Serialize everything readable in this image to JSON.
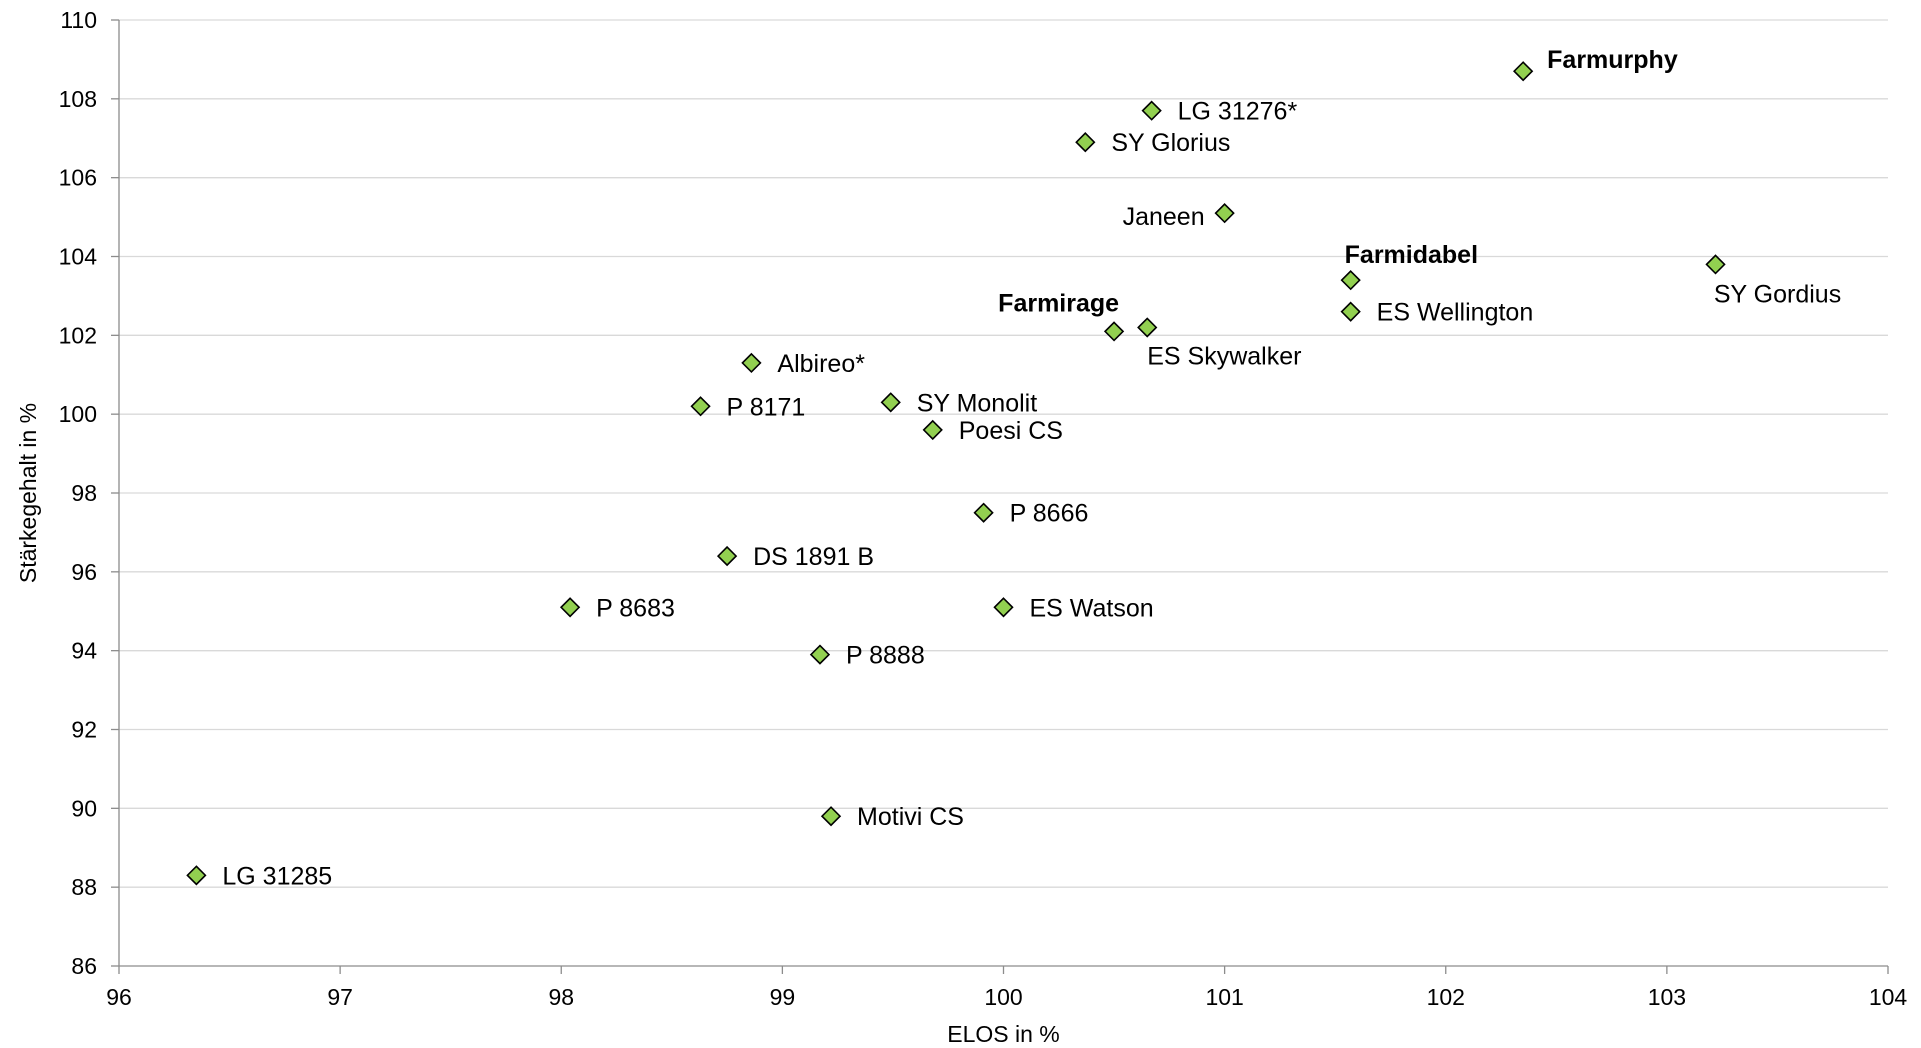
{
  "chart_data": {
    "type": "scatter",
    "xlabel": "ELOS in %",
    "ylabel": "Stärkegehalt in %",
    "xlim": [
      96,
      104
    ],
    "ylim": [
      86,
      110
    ],
    "x_ticks": [
      "96",
      "97",
      "98",
      "99",
      "100",
      "101",
      "102",
      "103",
      "104"
    ],
    "y_ticks": [
      "86",
      "88",
      "90",
      "92",
      "94",
      "96",
      "98",
      "100",
      "102",
      "104",
      "106",
      "108",
      "110"
    ],
    "grid": "horizontal",
    "marker_color": "#92d050",
    "marker_shape": "diamond",
    "points": [
      {
        "label": "Farmurphy",
        "x": 102.35,
        "y": 108.7,
        "bold": true,
        "label_pos": "above-right"
      },
      {
        "label": "LG 31276*",
        "x": 100.67,
        "y": 107.7,
        "bold": false,
        "label_pos": "right"
      },
      {
        "label": "SY Glorius",
        "x": 100.37,
        "y": 106.9,
        "bold": false,
        "label_pos": "right"
      },
      {
        "label": "Janeen",
        "x": 101.0,
        "y": 105.1,
        "bold": false,
        "label_pos": "left"
      },
      {
        "label": "Farmidabel",
        "x": 101.57,
        "y": 103.4,
        "bold": true,
        "label_pos": "above-right-near"
      },
      {
        "label": "SY Gordius",
        "x": 103.22,
        "y": 103.8,
        "bold": false,
        "label_pos": "below"
      },
      {
        "label": "ES Wellington",
        "x": 101.57,
        "y": 102.6,
        "bold": false,
        "label_pos": "right"
      },
      {
        "label": "Farmirage",
        "x": 100.5,
        "y": 102.1,
        "bold": true,
        "label_pos": "above-left"
      },
      {
        "label": "ES Skywalker",
        "x": 100.65,
        "y": 102.2,
        "bold": false,
        "label_pos": "below-right"
      },
      {
        "label": "Albireo*",
        "x": 98.86,
        "y": 101.3,
        "bold": false,
        "label_pos": "right"
      },
      {
        "label": "P 8171",
        "x": 98.63,
        "y": 100.2,
        "bold": false,
        "label_pos": "right"
      },
      {
        "label": "SY Monolit",
        "x": 99.49,
        "y": 100.3,
        "bold": false,
        "label_pos": "right"
      },
      {
        "label": "Poesi CS",
        "x": 99.68,
        "y": 99.6,
        "bold": false,
        "label_pos": "right"
      },
      {
        "label": "P 8666",
        "x": 99.91,
        "y": 97.5,
        "bold": false,
        "label_pos": "right"
      },
      {
        "label": "DS 1891 B",
        "x": 98.75,
        "y": 96.4,
        "bold": false,
        "label_pos": "right"
      },
      {
        "label": "P 8683",
        "x": 98.04,
        "y": 95.1,
        "bold": false,
        "label_pos": "right"
      },
      {
        "label": "ES Watson",
        "x": 100.0,
        "y": 95.1,
        "bold": false,
        "label_pos": "right"
      },
      {
        "label": "P 8888",
        "x": 99.17,
        "y": 93.9,
        "bold": false,
        "label_pos": "right"
      },
      {
        "label": "Motivi CS",
        "x": 99.22,
        "y": 89.8,
        "bold": false,
        "label_pos": "right"
      },
      {
        "label": "LG 31285",
        "x": 96.35,
        "y": 88.3,
        "bold": false,
        "label_pos": "right"
      }
    ]
  }
}
